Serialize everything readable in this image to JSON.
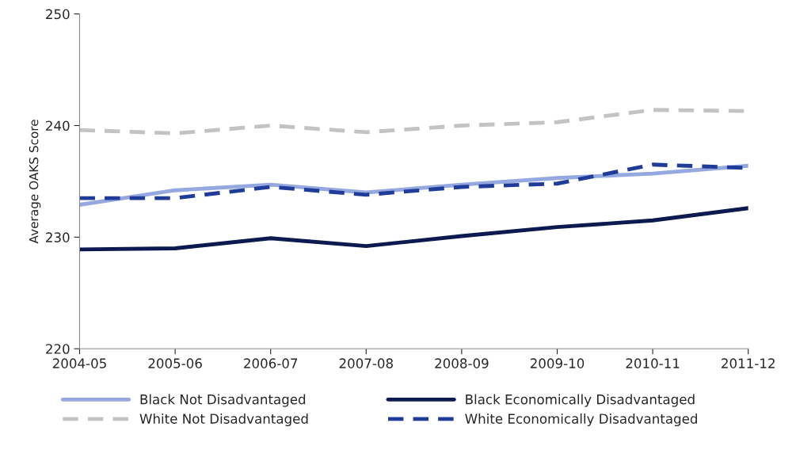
{
  "chart_data": {
    "type": "line",
    "ylabel": "Average OAKS Score",
    "categories": [
      "2004-05",
      "2005-06",
      "2006-07",
      "2007-08",
      "2008-09",
      "2009-10",
      "2010-11",
      "2011-12"
    ],
    "series": [
      {
        "name": "Black Not Disadvantaged",
        "color": "#95a9e0",
        "line_style": "solid",
        "values": [
          232.9,
          234.2,
          234.7,
          234.0,
          234.7,
          235.3,
          235.7,
          236.4
        ]
      },
      {
        "name": "Black Economically Disadvantaged",
        "color": "#0c1a4f",
        "line_style": "solid",
        "values": [
          228.9,
          229.0,
          229.9,
          229.2,
          230.1,
          230.9,
          231.5,
          232.6
        ]
      },
      {
        "name": "White Not Disadvantaged",
        "color": "#c3c3c3",
        "line_style": "dashed",
        "values": [
          239.6,
          239.3,
          240.0,
          239.4,
          240.0,
          240.3,
          241.4,
          241.3
        ]
      },
      {
        "name": "White Economically Disadvantaged",
        "color": "#1f3c99",
        "line_style": "dashed",
        "values": [
          233.5,
          233.5,
          234.5,
          233.8,
          234.5,
          234.8,
          236.5,
          236.2
        ]
      }
    ],
    "ylim": [
      220,
      250
    ],
    "yticks": [
      220,
      230,
      240,
      250
    ],
    "grid": false,
    "legend": "bottom",
    "marker": "none"
  }
}
